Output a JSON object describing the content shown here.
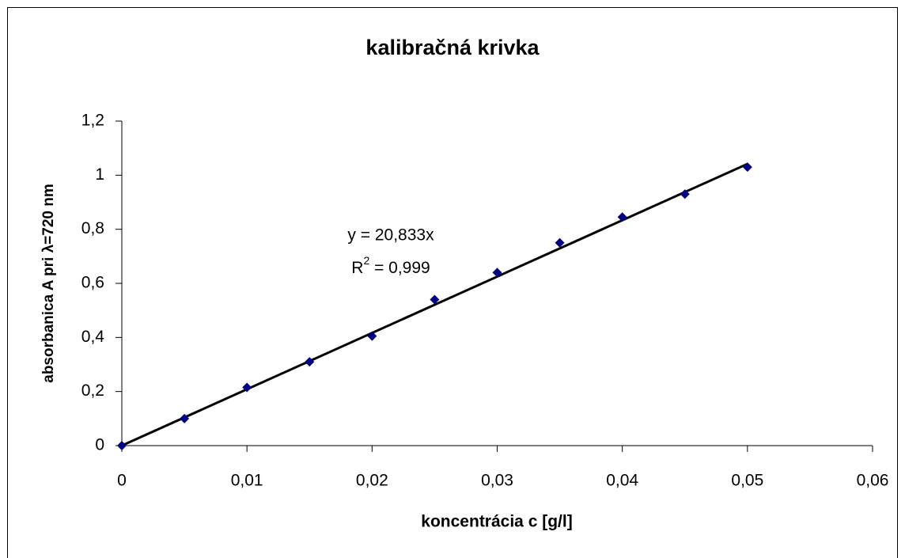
{
  "chart_data": {
    "type": "scatter",
    "title": "kalibračná krivka",
    "x_label": "koncentrácia c [g/l]",
    "y_label": "absorbanica A pri λ=720 nm",
    "series": [
      {
        "name": null,
        "color": "#000080",
        "x": [
          0,
          0.005,
          0.01,
          0.015,
          0.02,
          0.025,
          0.03,
          0.035,
          0.04,
          0.045,
          0.05
        ],
        "values": [
          0,
          0.1,
          0.215,
          0.31,
          0.405,
          0.54,
          0.64,
          0.75,
          0.845,
          0.93,
          1.03
        ]
      }
    ],
    "trendline": {
      "slope": 20.833,
      "color": "#000000",
      "equation_label": "y = 20,833x",
      "r2_parts": [
        "R",
        "2",
        " = 0,999"
      ]
    },
    "xlim": [
      0,
      0.06
    ],
    "xticks": [
      0,
      {
        "value": 0.01,
        "label": "0,01"
      },
      {
        "value": 0.02,
        "label": "0,02"
      },
      {
        "value": 0.03,
        "label": "0,03"
      },
      {
        "value": 0.04,
        "label": "0,04"
      },
      {
        "value": 0.05,
        "label": "0,05"
      },
      {
        "value": 0.06,
        "label": "0,06"
      }
    ],
    "ylim": [
      0,
      1.2
    ],
    "yticks": [
      0,
      {
        "value": 0.2,
        "label": "0,2"
      },
      {
        "value": 0.4,
        "label": "0,4"
      },
      {
        "value": 0.6,
        "label": "0,6"
      },
      {
        "value": 0.8,
        "label": "0,8"
      },
      1,
      {
        "value": 1.2,
        "label": "1,2"
      }
    ],
    "grid": false
  }
}
